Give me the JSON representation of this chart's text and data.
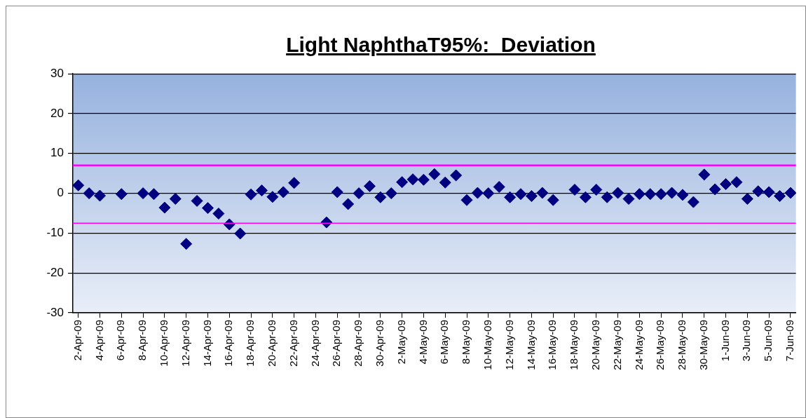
{
  "chart_data": {
    "type": "scatter",
    "title": "Light NaphthaT95%:  Deviation",
    "x": [
      "--04-02",
      "--04-03",
      "--04-04",
      "--04-06",
      "--04-08",
      "--04-09",
      "--04-10",
      "--04-11",
      "--04-12",
      "--04-13",
      "--04-14",
      "--04-15",
      "--04-16",
      "--04-17",
      "--04-18",
      "--04-19",
      "--04-20",
      "--04-21",
      "--04-22",
      "--04-25",
      "--04-26",
      "--04-27",
      "--04-28",
      "--04-29",
      "--04-30",
      "--05-01",
      "--05-02",
      "--05-03",
      "--05-04",
      "--05-05",
      "--05-06",
      "--05-07",
      "--05-08",
      "--05-09",
      "--05-10",
      "--05-11",
      "--05-12",
      "--05-13",
      "--05-14",
      "--05-15",
      "--05-16",
      "--05-18",
      "--05-19",
      "--05-20",
      "--05-21",
      "--05-22",
      "--05-23",
      "--05-24",
      "--05-25",
      "--05-26",
      "--05-27",
      "--05-28",
      "--05-29",
      "--05-30",
      "--05-31",
      "--06-01",
      "--06-02",
      "--06-03",
      "--06-04",
      "--06-05",
      "--06-06",
      "--06-07"
    ],
    "series": [
      {
        "color": "#000080",
        "values": [
          2.0,
          0,
          -0.6,
          -0.2,
          0,
          -0.2,
          -3.6,
          -1.4,
          -12.7,
          -1.9,
          -3.7,
          -5.1,
          -7.8,
          -10.1,
          -0.3,
          0.7,
          -0.9,
          0.3,
          2.6,
          -7.3,
          0.3,
          -2.7,
          0,
          1.8,
          -1.0,
          0,
          2.8,
          3.5,
          3.4,
          4.8,
          2.7,
          4.5,
          -1.7,
          0.1,
          0,
          1.6,
          -1.0,
          -0.2,
          -0.7,
          0.1,
          -1.7,
          0.9,
          -1.0,
          0.9,
          -1.0,
          0.1,
          -1.4,
          -0.2,
          -0.2,
          -0.2,
          0.1,
          -0.4,
          -2.2,
          4.7,
          1.0,
          2.3,
          2.8,
          -1.4,
          0.5,
          0.3,
          -0.7,
          0.1
        ]
      }
    ],
    "xlim": [
      "--04-01T12:00",
      "--06-07T12:00"
    ],
    "xticks": [
      {
        "value": "--04-02",
        "label": "2-Apr-09"
      },
      {
        "value": "--04-04",
        "label": "4-Apr-09"
      },
      {
        "value": "--04-06",
        "label": "6-Apr-09"
      },
      {
        "value": "--04-08",
        "label": "8-Apr-09"
      },
      {
        "value": "--04-10",
        "label": "10-Apr-09"
      },
      {
        "value": "--04-12",
        "label": "12-Apr-09"
      },
      {
        "value": "--04-14",
        "label": "14-Apr-09"
      },
      {
        "value": "--04-16",
        "label": "16-Apr-09"
      },
      {
        "value": "--04-18",
        "label": "18-Apr-09"
      },
      {
        "value": "--04-20",
        "label": "20-Apr-09"
      },
      {
        "value": "--04-22",
        "label": "22-Apr-09"
      },
      {
        "value": "--04-24",
        "label": "24-Apr-09"
      },
      {
        "value": "--04-26",
        "label": "26-Apr-09"
      },
      {
        "value": "--04-28",
        "label": "28-Apr-09"
      },
      {
        "value": "--04-30",
        "label": "30-Apr-09"
      },
      {
        "value": "--05-02",
        "label": "2-May-09"
      },
      {
        "value": "--05-04",
        "label": "4-May-09"
      },
      {
        "value": "--05-06",
        "label": "6-May-09"
      },
      {
        "value": "--05-08",
        "label": "8-May-09"
      },
      {
        "value": "--05-10",
        "label": "10-May-09"
      },
      {
        "value": "--05-12",
        "label": "12-May-09"
      },
      {
        "value": "--05-14",
        "label": "14-May-09"
      },
      {
        "value": "--05-16",
        "label": "16-May-09"
      },
      {
        "value": "--05-18",
        "label": "18-May-09"
      },
      {
        "value": "--05-20",
        "label": "20-May-09"
      },
      {
        "value": "--05-22",
        "label": "22-May-09"
      },
      {
        "value": "--05-24",
        "label": "24-May-09"
      },
      {
        "value": "--05-26",
        "label": "26-May-09"
      },
      {
        "value": "--05-28",
        "label": "28-May-09"
      },
      {
        "value": "--05-30",
        "label": "30-May-09"
      },
      {
        "value": "--06-01",
        "label": "1-Jun-09"
      },
      {
        "value": "--06-03",
        "label": "3-Jun-09"
      },
      {
        "value": "--06-05",
        "label": "5-Jun-09"
      },
      {
        "value": "--06-07",
        "label": "7-Jun-09"
      }
    ],
    "ylim": [
      -30,
      30
    ],
    "yticks": [
      -30,
      -20,
      -10,
      0,
      10,
      20,
      30
    ],
    "grid": "y",
    "marker": "diamond",
    "ref_lines": [
      {
        "axis": "y",
        "value": 7.0,
        "color": "#ff00ff"
      },
      {
        "axis": "y",
        "value": -7.5,
        "color": "#ff00ff"
      }
    ]
  }
}
